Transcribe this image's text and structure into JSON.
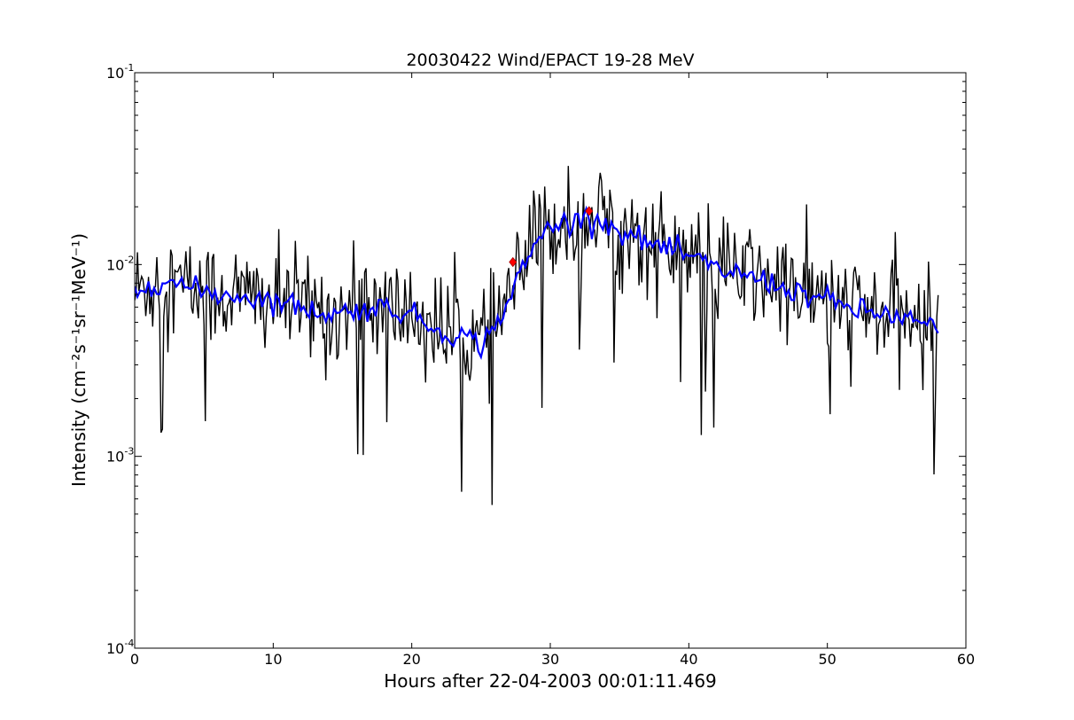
{
  "chart_data": {
    "type": "line",
    "title": "20030422 Wind/EPACT 19-28 MeV",
    "xlabel": "Hours after 22-04-2003 00:01:11.469",
    "ylabel": "Intensity (cm⁻²s⁻¹sr⁻¹MeV⁻¹)",
    "xlim": [
      0,
      60
    ],
    "ylim": [
      0.0001,
      0.1
    ],
    "yscale": "log",
    "grid": false,
    "x_ticks": [
      "0",
      "10",
      "20",
      "30",
      "40",
      "50",
      "60"
    ],
    "y_ticks": [
      {
        "base": "10",
        "exp": "-4"
      },
      {
        "base": "10",
        "exp": "-3"
      },
      {
        "base": "10",
        "exp": "-2"
      },
      {
        "base": "10",
        "exp": "-1"
      }
    ],
    "colors": {
      "raw": "#000000",
      "smoothed": "#0000ff",
      "markers": "#ff0000"
    },
    "series": [
      {
        "style": "raw-intensity",
        "color": "#000000",
        "x_step": 0.1,
        "x_start": 0,
        "y_trend": [
          [
            0,
            0.0072
          ],
          [
            2,
            0.0085
          ],
          [
            4,
            0.0075
          ],
          [
            6,
            0.007
          ],
          [
            8,
            0.0068
          ],
          [
            10,
            0.0065
          ],
          [
            12,
            0.006
          ],
          [
            14,
            0.0055
          ],
          [
            16,
            0.0058
          ],
          [
            18,
            0.006
          ],
          [
            20,
            0.0055
          ],
          [
            22,
            0.0045
          ],
          [
            24,
            0.0042
          ],
          [
            25,
            0.0038
          ],
          [
            26,
            0.0048
          ],
          [
            27,
            0.0065
          ],
          [
            28,
            0.0095
          ],
          [
            29,
            0.013
          ],
          [
            30,
            0.016
          ],
          [
            32,
            0.017
          ],
          [
            33,
            0.018
          ],
          [
            35,
            0.015
          ],
          [
            37,
            0.013
          ],
          [
            40,
            0.011
          ],
          [
            42,
            0.0095
          ],
          [
            45,
            0.0085
          ],
          [
            47,
            0.0075
          ],
          [
            50,
            0.0065
          ],
          [
            52,
            0.0058
          ],
          [
            54,
            0.0055
          ],
          [
            56,
            0.0052
          ],
          [
            58,
            0.0045
          ]
        ]
      },
      {
        "style": "smoothed-intensity",
        "color": "#0000ff",
        "y_trend": [
          [
            0,
            0.0072
          ],
          [
            2,
            0.0085
          ],
          [
            4,
            0.0075
          ],
          [
            6,
            0.007
          ],
          [
            8,
            0.0068
          ],
          [
            10,
            0.0065
          ],
          [
            12,
            0.006
          ],
          [
            14,
            0.0055
          ],
          [
            16,
            0.0058
          ],
          [
            18,
            0.006
          ],
          [
            20,
            0.0055
          ],
          [
            22,
            0.0045
          ],
          [
            24,
            0.0042
          ],
          [
            25,
            0.0038
          ],
          [
            26,
            0.0048
          ],
          [
            27,
            0.0065
          ],
          [
            28,
            0.0095
          ],
          [
            29,
            0.013
          ],
          [
            30,
            0.016
          ],
          [
            32,
            0.017
          ],
          [
            33,
            0.018
          ],
          [
            35,
            0.015
          ],
          [
            37,
            0.013
          ],
          [
            40,
            0.011
          ],
          [
            42,
            0.0095
          ],
          [
            45,
            0.0085
          ],
          [
            47,
            0.0075
          ],
          [
            50,
            0.0065
          ],
          [
            52,
            0.0058
          ],
          [
            54,
            0.0055
          ],
          [
            56,
            0.0052
          ],
          [
            58,
            0.0045
          ]
        ]
      }
    ],
    "markers": [
      {
        "x": 27.3,
        "y": 0.0103,
        "shape": "diamond",
        "color": "#ff0000"
      },
      {
        "x": 32.8,
        "y": 0.019,
        "shape": "diamond",
        "color": "#ff0000"
      }
    ]
  }
}
